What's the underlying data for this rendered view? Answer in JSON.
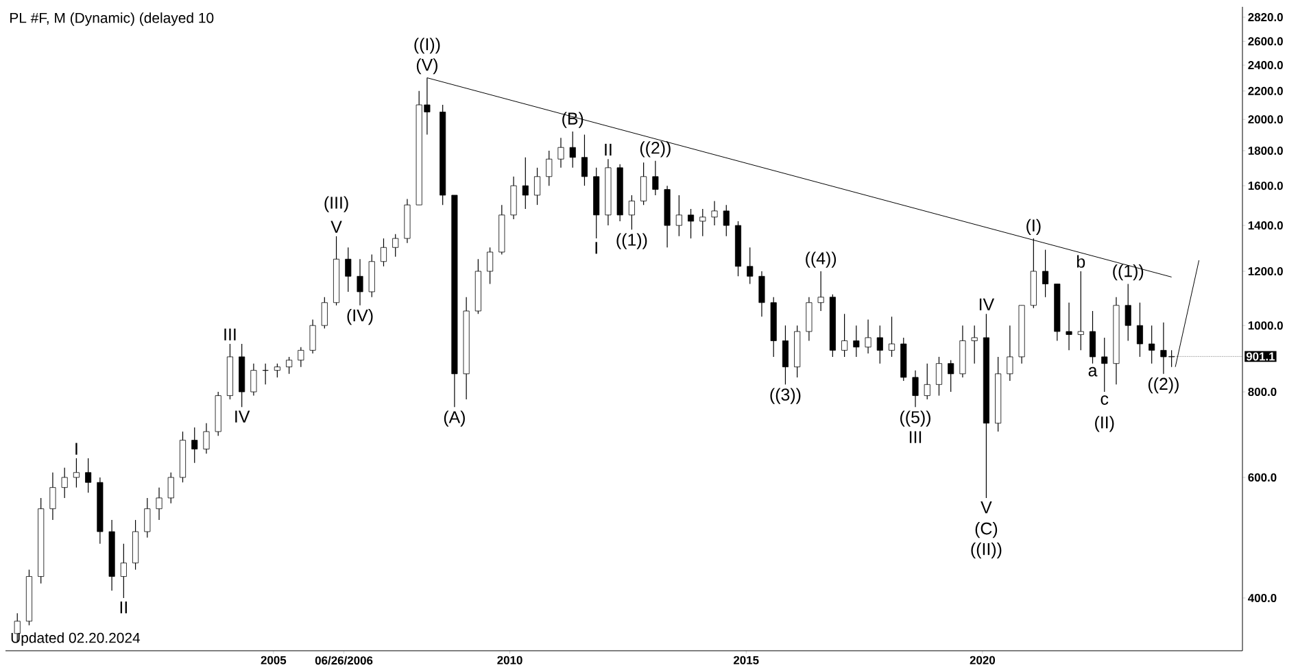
{
  "chart_data": {
    "type": "candlestick",
    "title": "PL #F, M (Dynamic) (delayed 10",
    "log": "y",
    "grid": false,
    "xlim": [
      "1999-05",
      "2025-07"
    ],
    "ylim": [
      335,
      2920
    ],
    "xticks": [
      {
        "value": "2005",
        "label": "2005"
      },
      {
        "value": "2006-06-26",
        "label": "06/26/2006"
      },
      {
        "value": "2010",
        "label": "2010"
      },
      {
        "value": "2015",
        "label": "2015"
      },
      {
        "value": "2020",
        "label": "2020"
      }
    ],
    "yticks": [
      {
        "value": 400,
        "label": "400.0"
      },
      {
        "value": 600,
        "label": "600.0"
      },
      {
        "value": 800,
        "label": "800.0"
      },
      {
        "value": 1000,
        "label": "1000.0"
      },
      {
        "value": 1200,
        "label": "1200.0"
      },
      {
        "value": 1400,
        "label": "1400.0"
      },
      {
        "value": 1600,
        "label": "1600.0"
      },
      {
        "value": 1800,
        "label": "1800.0"
      },
      {
        "value": 2000,
        "label": "2000.0"
      },
      {
        "value": 2200,
        "label": "2200.0"
      },
      {
        "value": 2400,
        "label": "2400.0"
      },
      {
        "value": 2600,
        "label": "2600.0"
      },
      {
        "value": 2820,
        "label": "2820.0"
      }
    ],
    "series": [
      {
        "color": "#000000",
        "x": [
          "1999-08",
          "1999-11",
          "2000-02",
          "2000-05",
          "2000-08",
          "2000-11",
          "2001-02",
          "2001-05",
          "2001-08",
          "2001-11",
          "2002-02",
          "2002-05",
          "2002-08",
          "2002-11",
          "2003-02",
          "2003-05",
          "2003-08",
          "2003-11",
          "2004-02",
          "2004-05",
          "2004-08",
          "2004-11",
          "2005-02",
          "2005-05",
          "2005-08",
          "2005-11",
          "2006-02",
          "2006-05",
          "2006-08",
          "2006-11",
          "2007-02",
          "2007-05",
          "2007-08",
          "2007-11",
          "2008-02",
          "2008-04",
          "2008-08",
          "2008-11",
          "2009-02",
          "2009-05",
          "2009-08",
          "2009-11",
          "2010-02",
          "2010-05",
          "2010-08",
          "2010-11",
          "2011-02",
          "2011-05",
          "2011-08",
          "2011-11",
          "2012-02",
          "2012-05",
          "2012-08",
          "2012-11",
          "2013-02",
          "2013-05",
          "2013-08",
          "2013-11",
          "2014-02",
          "2014-05",
          "2014-08",
          "2014-11",
          "2015-02",
          "2015-05",
          "2015-08",
          "2015-11",
          "2016-02",
          "2016-05",
          "2016-08",
          "2016-11",
          "2017-02",
          "2017-05",
          "2017-08",
          "2017-11",
          "2018-02",
          "2018-05",
          "2018-08",
          "2018-11",
          "2019-02",
          "2019-05",
          "2019-08",
          "2019-11",
          "2020-02",
          "2020-05",
          "2020-08",
          "2020-11",
          "2021-02",
          "2021-05",
          "2021-08",
          "2021-11",
          "2022-02",
          "2022-05",
          "2022-08",
          "2022-11",
          "2023-02",
          "2023-05",
          "2023-08",
          "2023-11",
          "2024-01"
        ],
        "ohlc": [
          [
            355,
            380,
            345,
            370
          ],
          [
            370,
            440,
            365,
            430
          ],
          [
            430,
            560,
            420,
            540
          ],
          [
            540,
            610,
            520,
            580
          ],
          [
            580,
            620,
            560,
            600
          ],
          [
            600,
            640,
            580,
            610
          ],
          [
            610,
            640,
            570,
            590
          ],
          [
            590,
            600,
            480,
            500
          ],
          [
            500,
            520,
            410,
            430
          ],
          [
            430,
            480,
            400,
            450
          ],
          [
            450,
            520,
            440,
            500
          ],
          [
            500,
            560,
            490,
            540
          ],
          [
            540,
            580,
            520,
            560
          ],
          [
            560,
            610,
            550,
            600
          ],
          [
            600,
            700,
            590,
            680
          ],
          [
            680,
            710,
            630,
            660
          ],
          [
            660,
            720,
            650,
            700
          ],
          [
            700,
            800,
            690,
            790
          ],
          [
            790,
            940,
            780,
            900
          ],
          [
            900,
            940,
            760,
            800
          ],
          [
            800,
            880,
            790,
            860
          ],
          [
            860,
            880,
            820,
            860
          ],
          [
            860,
            880,
            840,
            870
          ],
          [
            870,
            900,
            850,
            890
          ],
          [
            890,
            930,
            870,
            920
          ],
          [
            920,
            1020,
            910,
            1000
          ],
          [
            1000,
            1100,
            990,
            1080
          ],
          [
            1080,
            1350,
            1070,
            1250
          ],
          [
            1250,
            1300,
            1120,
            1180
          ],
          [
            1180,
            1250,
            1070,
            1120
          ],
          [
            1120,
            1270,
            1100,
            1240
          ],
          [
            1240,
            1340,
            1220,
            1300
          ],
          [
            1300,
            1360,
            1260,
            1340
          ],
          [
            1340,
            1530,
            1320,
            1500
          ],
          [
            1500,
            2200,
            1500,
            2100
          ],
          [
            2100,
            2300,
            1900,
            2050
          ],
          [
            2050,
            2100,
            1500,
            1550
          ],
          [
            1550,
            1550,
            760,
            850
          ],
          [
            850,
            1100,
            780,
            1050
          ],
          [
            1050,
            1250,
            1040,
            1200
          ],
          [
            1200,
            1300,
            1150,
            1280
          ],
          [
            1280,
            1500,
            1270,
            1450
          ],
          [
            1450,
            1650,
            1430,
            1600
          ],
          [
            1600,
            1760,
            1480,
            1550
          ],
          [
            1550,
            1700,
            1500,
            1650
          ],
          [
            1650,
            1800,
            1600,
            1750
          ],
          [
            1750,
            1880,
            1700,
            1820
          ],
          [
            1820,
            1920,
            1700,
            1760
          ],
          [
            1760,
            1900,
            1600,
            1650
          ],
          [
            1650,
            1700,
            1340,
            1450
          ],
          [
            1450,
            1750,
            1400,
            1700
          ],
          [
            1700,
            1720,
            1420,
            1450
          ],
          [
            1450,
            1550,
            1380,
            1520
          ],
          [
            1520,
            1730,
            1500,
            1650
          ],
          [
            1650,
            1740,
            1550,
            1580
          ],
          [
            1580,
            1600,
            1300,
            1400
          ],
          [
            1400,
            1550,
            1350,
            1450
          ],
          [
            1450,
            1480,
            1340,
            1420
          ],
          [
            1420,
            1480,
            1350,
            1440
          ],
          [
            1440,
            1520,
            1400,
            1470
          ],
          [
            1470,
            1500,
            1350,
            1400
          ],
          [
            1400,
            1420,
            1180,
            1220
          ],
          [
            1220,
            1300,
            1150,
            1180
          ],
          [
            1180,
            1200,
            1030,
            1080
          ],
          [
            1080,
            1100,
            900,
            950
          ],
          [
            950,
            1000,
            820,
            870
          ],
          [
            870,
            1000,
            840,
            980
          ],
          [
            980,
            1100,
            950,
            1080
          ],
          [
            1080,
            1200,
            1050,
            1100
          ],
          [
            1100,
            1110,
            900,
            920
          ],
          [
            920,
            1040,
            900,
            950
          ],
          [
            950,
            1000,
            900,
            930
          ],
          [
            930,
            1020,
            910,
            960
          ],
          [
            960,
            1000,
            880,
            920
          ],
          [
            920,
            1030,
            900,
            940
          ],
          [
            940,
            960,
            830,
            840
          ],
          [
            840,
            860,
            760,
            790
          ],
          [
            790,
            880,
            780,
            820
          ],
          [
            820,
            900,
            790,
            880
          ],
          [
            880,
            890,
            800,
            850
          ],
          [
            850,
            1000,
            840,
            950
          ],
          [
            950,
            1000,
            880,
            960
          ],
          [
            960,
            1040,
            560,
            720
          ],
          [
            720,
            900,
            700,
            850
          ],
          [
            850,
            1000,
            830,
            900
          ],
          [
            900,
            1070,
            880,
            1070
          ],
          [
            1070,
            1340,
            1060,
            1200
          ],
          [
            1200,
            1290,
            1100,
            1150
          ],
          [
            1150,
            1150,
            950,
            980
          ],
          [
            980,
            1080,
            920,
            970
          ],
          [
            970,
            1200,
            920,
            980
          ],
          [
            980,
            1050,
            880,
            900
          ],
          [
            900,
            960,
            800,
            880
          ],
          [
            880,
            1100,
            820,
            1070
          ],
          [
            1070,
            1150,
            950,
            1000
          ],
          [
            1000,
            1080,
            900,
            940
          ],
          [
            940,
            1000,
            880,
            920
          ],
          [
            920,
            1010,
            850,
            900
          ],
          [
            900,
            920,
            870,
            901.1
          ]
        ]
      },
      {
        "type": "line",
        "color": "#000000",
        "x": [
          "2008-04",
          "2024-01"
        ],
        "values": [
          2300,
          1177
        ]
      },
      {
        "type": "line",
        "color": "#000000",
        "x": [
          "2024-02",
          "2024-08"
        ],
        "values": [
          870,
          1245
        ]
      }
    ],
    "annotations": [
      {
        "text": "(V)",
        "x": "2008-04",
        "y": 2300
      },
      {
        "text": "((I))",
        "x": "2008-04",
        "y": 2300
      },
      {
        "text": "V",
        "x": "2006-05",
        "y": 1350
      },
      {
        "text": "(III)",
        "x": "2006-05",
        "y": 1350
      },
      {
        "text": "(IV)",
        "x": "2006-11",
        "y": 1070
      },
      {
        "text": "III",
        "x": "2004-02",
        "y": 940
      },
      {
        "text": "IV",
        "x": "2004-05",
        "y": 760
      },
      {
        "text": "I",
        "x": "2000-11",
        "y": 640
      },
      {
        "text": "II",
        "x": "2001-11",
        "y": 400
      },
      {
        "text": "(A)",
        "x": "2008-11",
        "y": 760
      },
      {
        "text": "(B)",
        "x": "2011-05",
        "y": 1920
      },
      {
        "text": "II",
        "x": "2012-02",
        "y": 1750
      },
      {
        "text": "((2))",
        "x": "2013-02",
        "y": 1740
      },
      {
        "text": "I",
        "x": "2011-11",
        "y": 1340
      },
      {
        "text": "((1))",
        "x": "2012-08",
        "y": 1380
      },
      {
        "text": "((4))",
        "x": "2016-08",
        "y": 1200
      },
      {
        "text": "((3))",
        "x": "2015-11",
        "y": 820
      },
      {
        "text": "((5))",
        "x": "2018-08",
        "y": 760
      },
      {
        "text": "III",
        "x": "2018-08",
        "y": 760
      },
      {
        "text": "IV",
        "x": "2020-02",
        "y": 1040
      },
      {
        "text": "V",
        "x": "2020-02",
        "y": 560
      },
      {
        "text": "(C)",
        "x": "2020-02",
        "y": 560
      },
      {
        "text": "((II))",
        "x": "2020-02",
        "y": 560
      },
      {
        "text": "(I)",
        "x": "2021-02",
        "y": 1340
      },
      {
        "text": "b",
        "x": "2022-02",
        "y": 1200
      },
      {
        "text": "a",
        "x": "2022-05",
        "y": 880
      },
      {
        "text": "c",
        "x": "2022-08",
        "y": 800
      },
      {
        "text": "(II)",
        "x": "2022-08",
        "y": 800
      },
      {
        "text": "((1))",
        "x": "2023-02",
        "y": 1150
      },
      {
        "text": "((2))",
        "x": "2023-11",
        "y": 850
      },
      {
        "text": "901.1",
        "x": "2024-01",
        "y": 901.1
      },
      "Updated 02.20.2024"
    ]
  }
}
